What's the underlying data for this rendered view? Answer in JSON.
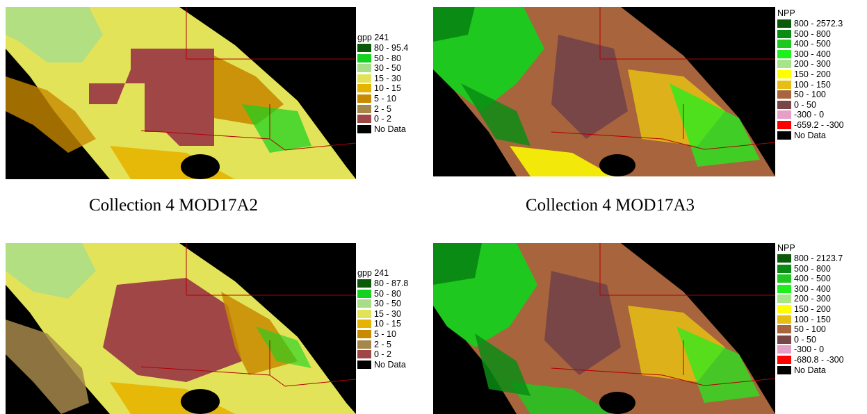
{
  "panels": [
    {
      "legend_title": "gpp 241",
      "classes": [
        {
          "label": "80 - 95.4",
          "color": "#0a5a0a"
        },
        {
          "label": "50 - 80",
          "color": "#14d21e"
        },
        {
          "label": "30 - 50",
          "color": "#a8de8a"
        },
        {
          "label": "15 - 30",
          "color": "#e3e35a"
        },
        {
          "label": "10 - 15",
          "color": "#e6b400"
        },
        {
          "label": "5 - 10",
          "color": "#c88a00"
        },
        {
          "label": "2 - 5",
          "color": "#a5874a"
        },
        {
          "label": "0 - 2",
          "color": "#a04646"
        },
        {
          "label": "No Data",
          "color": "#000000"
        }
      ],
      "caption": "Collection 4 MOD17A2"
    },
    {
      "legend_title": "NPP",
      "classes": [
        {
          "label": "800 - 2572.3",
          "color": "#0a5a0a"
        },
        {
          "label": "500 - 800",
          "color": "#0a8c14"
        },
        {
          "label": "400 - 500",
          "color": "#1ec81e"
        },
        {
          "label": "300 - 400",
          "color": "#1ef01e"
        },
        {
          "label": "200 - 300",
          "color": "#a8e48a"
        },
        {
          "label": "150 - 200",
          "color": "#ffff00"
        },
        {
          "label": "100 - 150",
          "color": "#e6be14"
        },
        {
          "label": "50 - 100",
          "color": "#a8643c"
        },
        {
          "label": "0 - 50",
          "color": "#784646"
        },
        {
          "label": "-300 - 0",
          "color": "#e6a0c8"
        },
        {
          "label": "-659.2 - -300",
          "color": "#ff0000"
        },
        {
          "label": "No Data",
          "color": "#000000"
        }
      ],
      "caption": "Collection 4 MOD17A3"
    },
    {
      "legend_title": "gpp 241",
      "classes": [
        {
          "label": "80 - 87.8",
          "color": "#0a5a0a"
        },
        {
          "label": "50 - 80",
          "color": "#14d21e"
        },
        {
          "label": "30 - 50",
          "color": "#a8de8a"
        },
        {
          "label": "15 - 30",
          "color": "#e3e35a"
        },
        {
          "label": "10 - 15",
          "color": "#e6b400"
        },
        {
          "label": "5 - 10",
          "color": "#c88a00"
        },
        {
          "label": "2 - 5",
          "color": "#a5874a"
        },
        {
          "label": "0 - 2",
          "color": "#a04646"
        },
        {
          "label": "No Data",
          "color": "#000000"
        }
      ],
      "caption": ""
    },
    {
      "legend_title": "NPP",
      "classes": [
        {
          "label": "800 - 2123.7",
          "color": "#0a5a0a"
        },
        {
          "label": "500 - 800",
          "color": "#0a8c14"
        },
        {
          "label": "400 - 500",
          "color": "#1ec81e"
        },
        {
          "label": "300 - 400",
          "color": "#1ef01e"
        },
        {
          "label": "200 - 300",
          "color": "#a8e48a"
        },
        {
          "label": "150 - 200",
          "color": "#ffff00"
        },
        {
          "label": "100 - 150",
          "color": "#e6be14"
        },
        {
          "label": "50 - 100",
          "color": "#a8643c"
        },
        {
          "label": "0 - 50",
          "color": "#784646"
        },
        {
          "label": "-300 - 0",
          "color": "#e6a0c8"
        },
        {
          "label": "-680.8 - -300",
          "color": "#ff0000"
        },
        {
          "label": "No Data",
          "color": "#000000"
        }
      ],
      "caption": ""
    }
  ]
}
